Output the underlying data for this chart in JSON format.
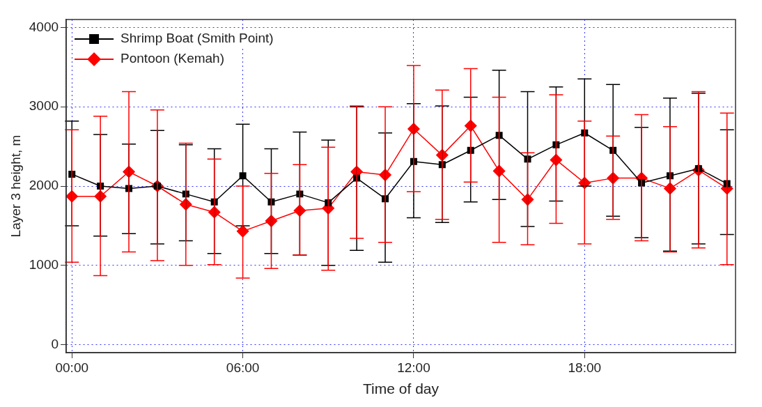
{
  "chart_data": {
    "type": "line",
    "xlabel": "Time of day",
    "ylabel": "Layer 3 height, m",
    "x": [
      0,
      1,
      2,
      3,
      4,
      5,
      6,
      7,
      8,
      9,
      10,
      11,
      12,
      13,
      14,
      15,
      16,
      17,
      18,
      19,
      20,
      21,
      22,
      23
    ],
    "xlim": [
      -0.2,
      23.3
    ],
    "xticks": [
      {
        "value": 0,
        "label": "00:00"
      },
      {
        "value": 6,
        "label": "06:00"
      },
      {
        "value": 12,
        "label": "12:00"
      },
      {
        "value": 18,
        "label": "18:00"
      }
    ],
    "ylim": [
      -100,
      4100
    ],
    "yticks": [
      0,
      1000,
      2000,
      3000,
      4000
    ],
    "grid": true,
    "legend": "top left",
    "line_style": "solid",
    "series": [
      {
        "name": "Shrimp Boat (Smith Point)",
        "color": "#000000",
        "marker": "square",
        "values": [
          2150,
          2000,
          1970,
          2000,
          1900,
          1800,
          2130,
          1800,
          1900,
          1790,
          2100,
          1840,
          2310,
          2270,
          2450,
          2640,
          2340,
          2520,
          2670,
          2450,
          2040,
          2130,
          2220,
          2030
        ],
        "errors": [
          [
            1500,
            2820
          ],
          [
            1370,
            2650
          ],
          [
            1400,
            2530
          ],
          [
            1270,
            2700
          ],
          [
            1310,
            2520
          ],
          [
            1150,
            2470
          ],
          [
            1500,
            2780
          ],
          [
            1150,
            2470
          ],
          [
            1130,
            2680
          ],
          [
            1000,
            2580
          ],
          [
            1190,
            3000
          ],
          [
            1040,
            2670
          ],
          [
            1600,
            3040
          ],
          [
            1540,
            3010
          ],
          [
            1800,
            3120
          ],
          [
            1830,
            3460
          ],
          [
            1490,
            3190
          ],
          [
            1810,
            3250
          ],
          [
            2000,
            3350
          ],
          [
            1620,
            3280
          ],
          [
            1350,
            2740
          ],
          [
            1180,
            3110
          ],
          [
            1270,
            3170
          ],
          [
            1390,
            2710
          ]
        ]
      },
      {
        "name": "Pontoon (Kemah)",
        "color": "#ff0000",
        "marker": "diamond",
        "values": [
          1870,
          1870,
          2180,
          2000,
          1770,
          1670,
          1430,
          1560,
          1690,
          1720,
          2180,
          2140,
          2720,
          2390,
          2760,
          2190,
          1830,
          2330,
          2040,
          2100,
          2100,
          1970,
          2200,
          1970
        ],
        "errors": [
          [
            1040,
            2710
          ],
          [
            870,
            2880
          ],
          [
            1170,
            3190
          ],
          [
            1060,
            2960
          ],
          [
            1000,
            2540
          ],
          [
            1010,
            2340
          ],
          [
            840,
            2000
          ],
          [
            960,
            2160
          ],
          [
            1130,
            2270
          ],
          [
            940,
            2490
          ],
          [
            1340,
            3010
          ],
          [
            1290,
            3000
          ],
          [
            1930,
            3520
          ],
          [
            1580,
            3210
          ],
          [
            2050,
            3480
          ],
          [
            1290,
            3120
          ],
          [
            1260,
            2420
          ],
          [
            1530,
            3150
          ],
          [
            1270,
            2820
          ],
          [
            1580,
            2630
          ],
          [
            1310,
            2900
          ],
          [
            1170,
            2750
          ],
          [
            1220,
            3190
          ],
          [
            1010,
            2920
          ]
        ]
      }
    ]
  }
}
